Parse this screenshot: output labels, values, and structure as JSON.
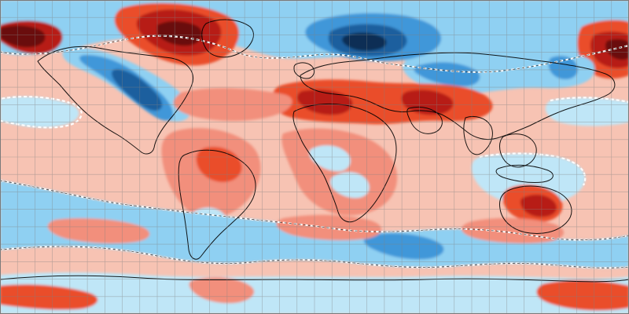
{
  "map": {
    "kind": "global temperature anomaly map",
    "projection": "equirectangular",
    "gridlines": true,
    "grid_step_degrees": 10,
    "colors": {
      "ocean_neutral": "#ffffff",
      "light_warm": "#f7c3b3",
      "warm": "#f28f7c",
      "very_warm": "#ea4d2b",
      "strong_warm": "#b71c13",
      "extreme_warm": "#6b0f0b",
      "light_cool": "#bfe6f7",
      "cool": "#8fd0f2",
      "very_cool": "#3f97d9",
      "strong_cool": "#1d5e9e",
      "extreme_cool": "#0d2e55",
      "gridline": "#808080",
      "coastline": "#000000"
    },
    "legend_shown": false
  }
}
